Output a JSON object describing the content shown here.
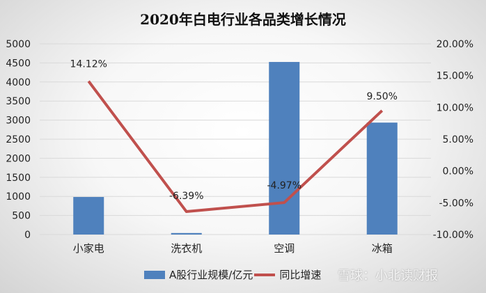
{
  "chart_data": {
    "type": "bar+line",
    "title": "2020年白电行业各品类增长情况",
    "categories": [
      "小家电",
      "洗衣机",
      "空调",
      "冰箱"
    ],
    "series": [
      {
        "name": "A股行业规模/亿元",
        "type": "bar",
        "axis": "left",
        "values": [
          985,
          40,
          4525,
          2935
        ],
        "color": "#4f81bd"
      },
      {
        "name": "同比增速",
        "type": "line",
        "axis": "right",
        "values": [
          14.12,
          -6.39,
          -4.97,
          9.5
        ],
        "labels": [
          "14.12%",
          "-6.39%",
          "-4.97%",
          "9.50%"
        ],
        "color": "#c0504d"
      }
    ],
    "left_axis": {
      "ylim": [
        0,
        5000
      ],
      "ticks": [
        "0",
        "500",
        "1000",
        "1500",
        "2000",
        "2500",
        "3000",
        "3500",
        "4000",
        "4500",
        "5000"
      ]
    },
    "right_axis": {
      "ylim": [
        -10,
        20
      ],
      "ticks": [
        "-10.00%",
        "-5.00%",
        "0.00%",
        "5.00%",
        "10.00%",
        "15.00%",
        "20.00%"
      ]
    },
    "grid": true,
    "legend": "bottom"
  },
  "watermark": "雪球：小北读财报"
}
